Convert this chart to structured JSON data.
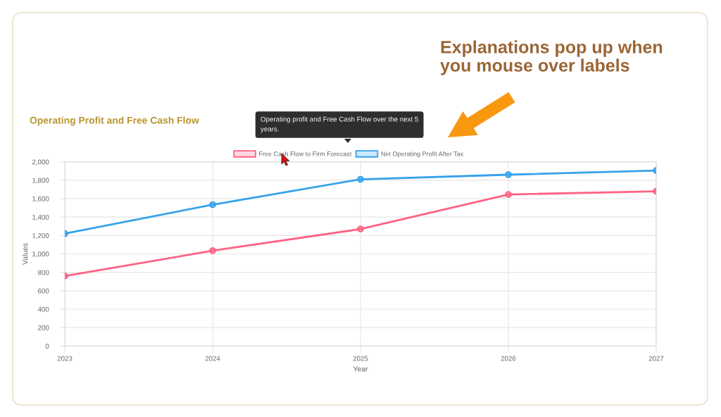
{
  "chart_data": {
    "type": "line",
    "title": "Operating Profit and Free Cash Flow",
    "xlabel": "Year",
    "ylabel": "Values",
    "categories": [
      "2023",
      "2024",
      "2025",
      "2026",
      "2027"
    ],
    "series": [
      {
        "name": "Free Cash Flow to Firm Forecast",
        "color": "#ff6384",
        "values": [
          760,
          1035,
          1270,
          1645,
          1680
        ]
      },
      {
        "name": "Net Operating Profit After Tax",
        "color": "#36a2eb",
        "values": [
          1220,
          1535,
          1810,
          1860,
          1905
        ]
      }
    ],
    "ylim": [
      0,
      2000
    ],
    "yticks": [
      0,
      200,
      400,
      600,
      800,
      {
        "value": 1000,
        "label": "1,000"
      },
      {
        "value": 1200,
        "label": "1,200"
      },
      {
        "value": 1400,
        "label": "1,400"
      },
      {
        "value": 1600,
        "label": "1,600"
      },
      {
        "value": 1800,
        "label": "1,800"
      },
      {
        "value": 2000,
        "label": "2,000"
      }
    ],
    "grid": true,
    "legend": "top",
    "marker": "circle",
    "line_style": "solid",
    "annotations": [
      "Operating profit and Free Cash Flow over the next 5\nyears.",
      "Explanations pop up when\nyou mouse over labels"
    ]
  }
}
